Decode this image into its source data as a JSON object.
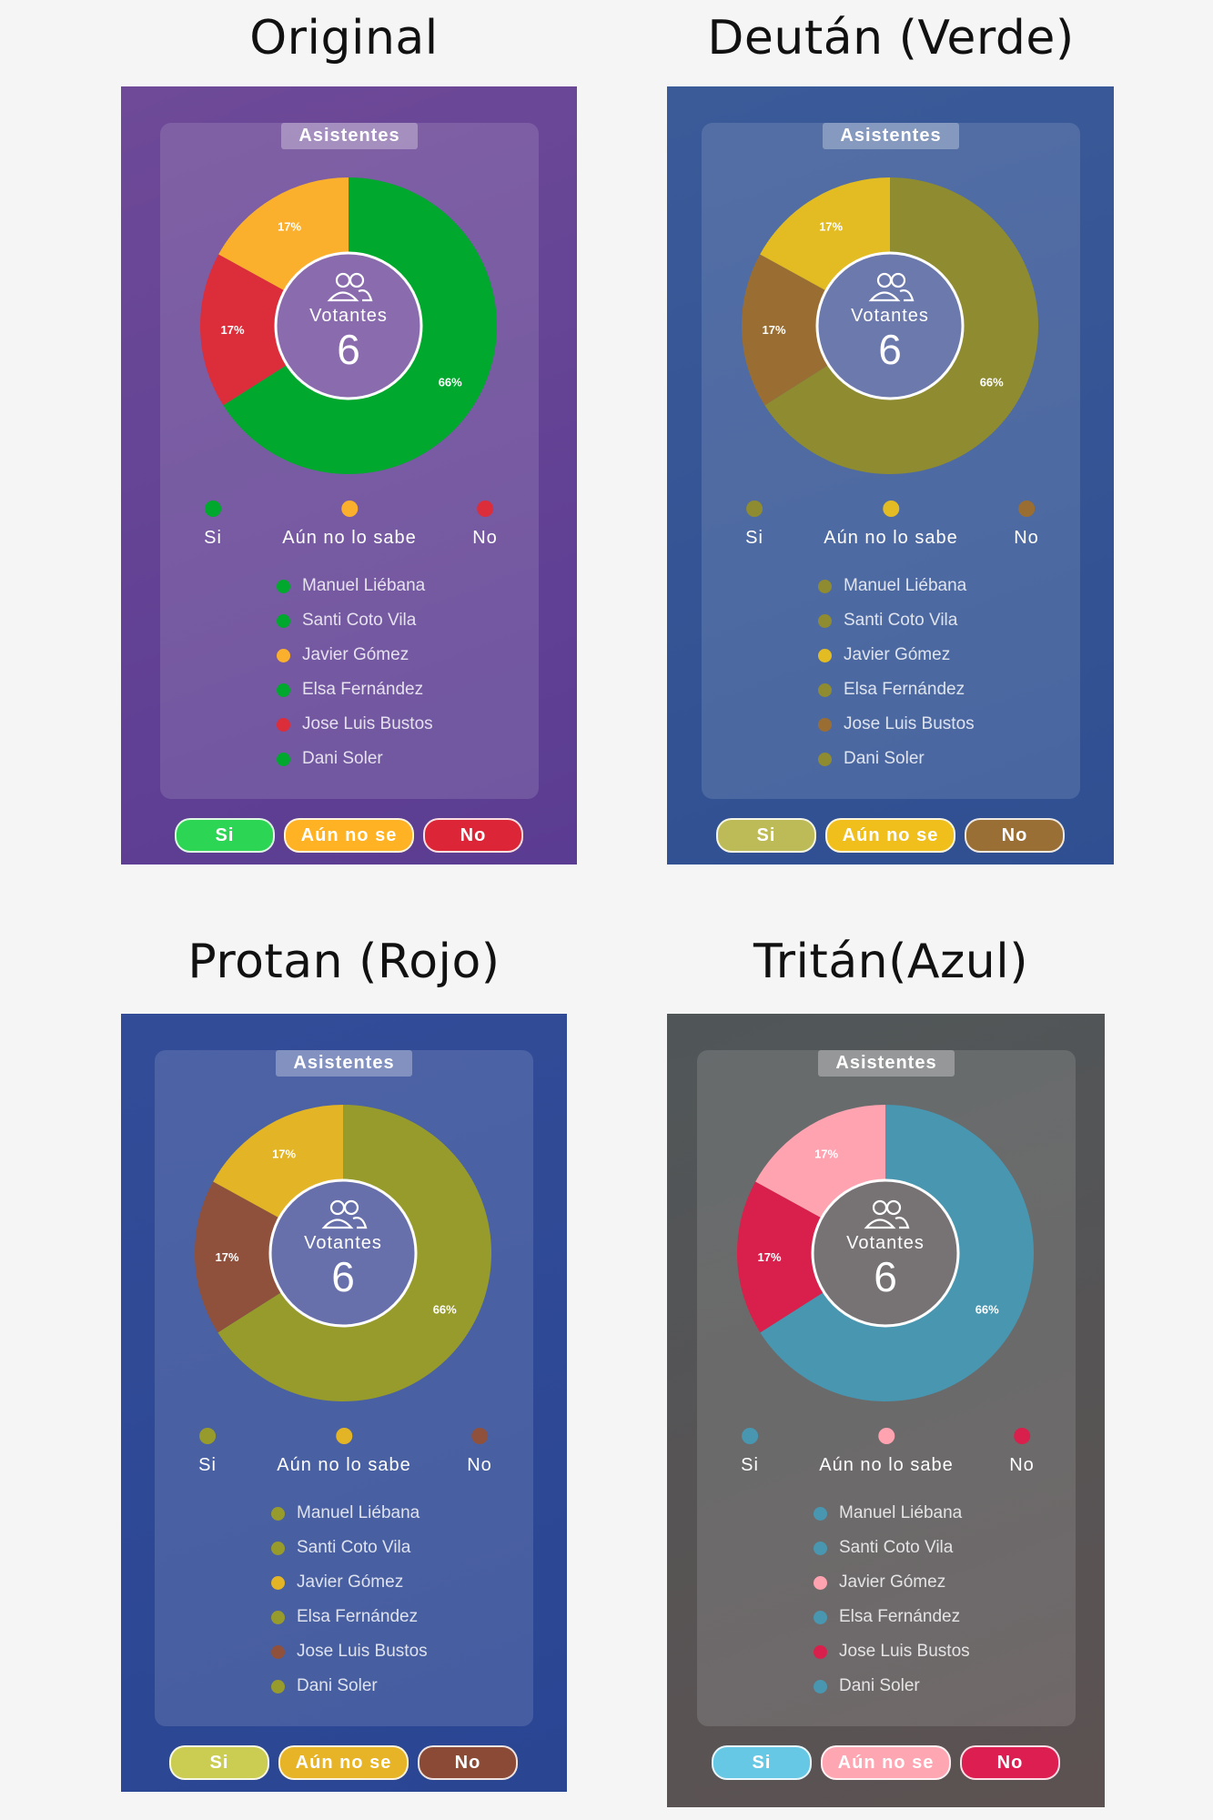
{
  "panels": [
    {
      "title": "Original",
      "card_title": "Asistentes",
      "center_label": "Votantes",
      "center_value": "6",
      "bg_from": "#6e4a98",
      "bg_to": "#5a3c92",
      "center_fill": "#8a6cae",
      "colors": {
        "si": "#00a82d",
        "aun": "#fbb02d",
        "no": "#dc2d3a"
      },
      "btn_colors": {
        "si": "#2dd554",
        "aun": "#ffb224",
        "no": "#dc2637"
      }
    },
    {
      "title": "Deután (Verde)",
      "card_title": "Asistentes",
      "center_label": "Votantes",
      "center_value": "6",
      "bg_from": "#3a5a98",
      "bg_to": "#2f4f92",
      "center_fill": "#6b79ad",
      "colors": {
        "si": "#8e8b30",
        "aun": "#e2bc22",
        "no": "#9a6e32"
      },
      "btn_colors": {
        "si": "#bdbb57",
        "aun": "#f0bf1c",
        "no": "#9a6f35"
      }
    },
    {
      "title": "Protan (Rojo)",
      "card_title": "Asistentes",
      "center_label": "Votantes",
      "center_value": "6",
      "bg_from": "#334c98",
      "bg_to": "#2a4693",
      "center_fill": "#6870ac",
      "colors": {
        "si": "#979b2c",
        "aun": "#e3b425",
        "no": "#8f513c"
      },
      "btn_colors": {
        "si": "#cbcd52",
        "aun": "#e7b427",
        "no": "#8b4a35"
      }
    },
    {
      "title": "Tritán(Azul)",
      "card_title": "Asistentes",
      "center_label": "Votantes",
      "center_value": "6",
      "bg_from": "#505658",
      "bg_to": "#5c5252",
      "center_fill": "#777375",
      "colors": {
        "si": "#4896b0",
        "aun": "#ffa3b1",
        "no": "#d9204c"
      },
      "btn_colors": {
        "si": "#66c8e4",
        "aun": "#ffa6b3",
        "no": "#dc1e50"
      }
    }
  ],
  "chart_data": {
    "type": "pie",
    "title": "Asistentes",
    "categories": [
      "Si",
      "Aún no lo sabe",
      "No"
    ],
    "values": [
      66,
      17,
      17
    ],
    "labels": [
      "66%",
      "17%",
      "17%"
    ],
    "center": {
      "label": "Votantes",
      "value": 6
    }
  },
  "legend": [
    "Si",
    "Aún no lo sabe",
    "No"
  ],
  "voters": [
    {
      "name": "Manuel Liébana",
      "vote": "si"
    },
    {
      "name": "Santi Coto Vila",
      "vote": "si"
    },
    {
      "name": "Javier Gómez",
      "vote": "aun"
    },
    {
      "name": "Elsa Fernández",
      "vote": "si"
    },
    {
      "name": "Jose Luis Bustos",
      "vote": "no"
    },
    {
      "name": "Dani Soler",
      "vote": "si"
    }
  ],
  "buttons": {
    "si": "Si",
    "aun": "Aún no se",
    "no": "No"
  },
  "icons": {
    "center": "users-icon"
  }
}
